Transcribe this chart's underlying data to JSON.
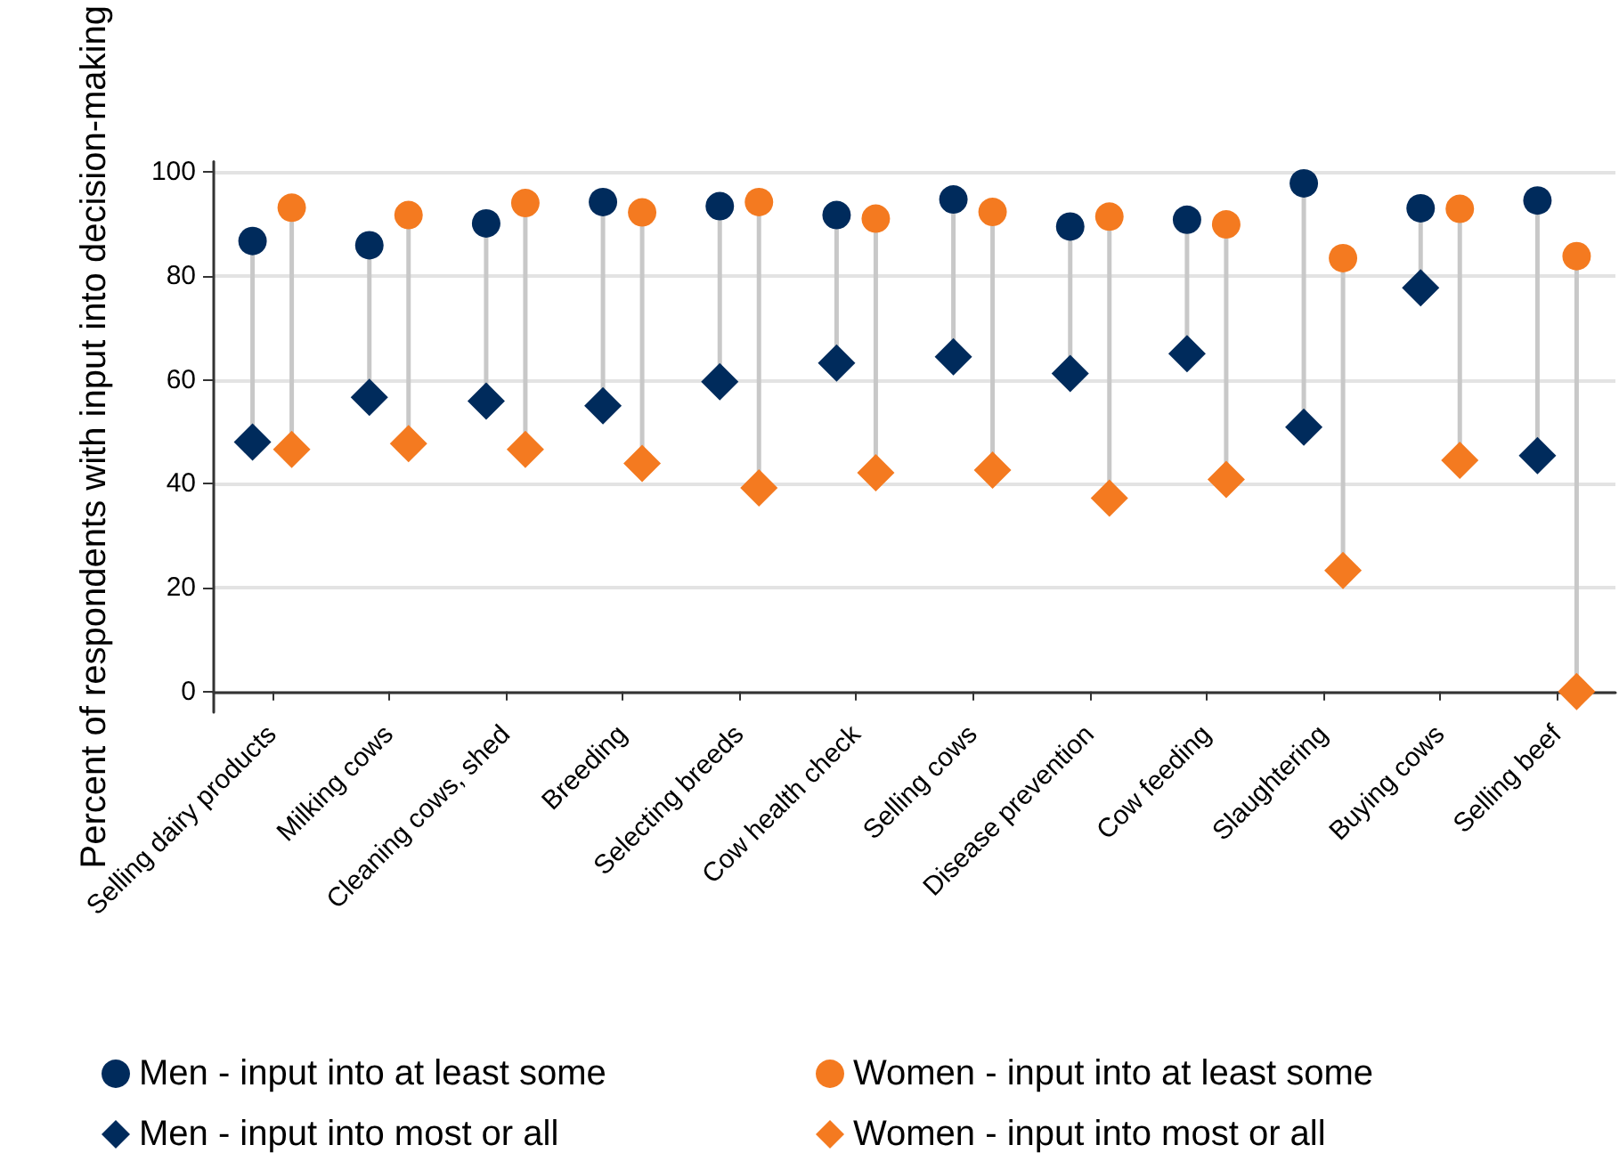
{
  "chart_data": {
    "type": "lollipop",
    "ylabel": "Percent of respondents with input into decision-making",
    "categories": [
      "Selling dairy products",
      "Milking cows",
      "Cleaning cows, shed",
      "Breeding",
      "Selecting breeds",
      "Cow health check",
      "Selling cows",
      "Disease prevention",
      "Cow feeding",
      "Slaughtering",
      "Buying cows",
      "Selling beef"
    ],
    "series": [
      {
        "name": "Men - input into at least some",
        "color": "#002b5c",
        "marker": "circle",
        "values": [
          86.7,
          85.9,
          90.1,
          94.2,
          93.4,
          91.7,
          94.7,
          89.5,
          90.8,
          97.8,
          93.0,
          94.5
        ]
      },
      {
        "name": "Women - input into at least some",
        "color": "#f47a20",
        "marker": "circle",
        "values": [
          93.1,
          91.7,
          94.0,
          92.2,
          94.2,
          91.0,
          92.3,
          91.4,
          89.9,
          83.4,
          92.9,
          83.8
        ]
      },
      {
        "name": "Men - input into most or all",
        "color": "#002b5c",
        "marker": "diamond",
        "values": [
          48.0,
          56.6,
          55.9,
          55.0,
          59.6,
          63.2,
          64.4,
          61.2,
          65.0,
          50.9,
          77.7,
          45.4
        ]
      },
      {
        "name": "Women - input into most or all",
        "color": "#f47a20",
        "marker": "diamond",
        "values": [
          46.6,
          47.7,
          46.6,
          43.9,
          39.2,
          42.1,
          42.6,
          37.2,
          40.8,
          23.3,
          44.5,
          0
        ]
      }
    ],
    "ylim": [
      -4,
      102
    ],
    "yticks": [
      0,
      20,
      40,
      60,
      80,
      100
    ],
    "grid": "y",
    "legend": "bottom"
  }
}
